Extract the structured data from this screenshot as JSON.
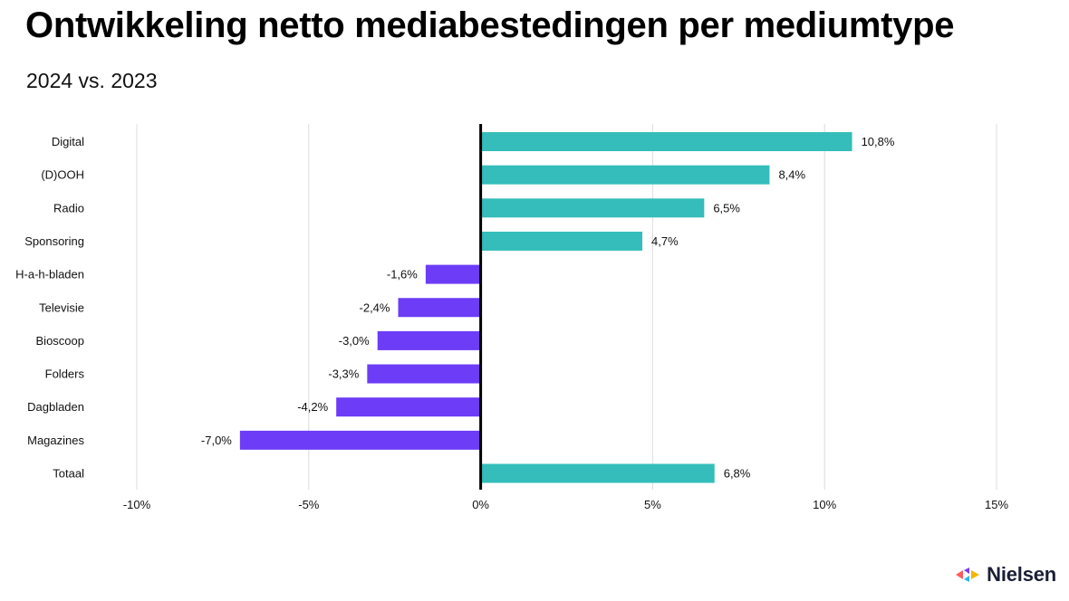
{
  "header": {
    "title": "Ontwikkeling netto mediabestedingen per mediumtype",
    "subtitle": "2024 vs. 2023"
  },
  "brand": {
    "name": "Nielsen"
  },
  "chart_data": {
    "type": "bar",
    "orientation": "horizontal",
    "categories": [
      "Digital",
      "(D)OOH",
      "Radio",
      "Sponsoring",
      "H-a-h-bladen",
      "Televisie",
      "Bioscoop",
      "Folders",
      "Dagbladen",
      "Magazines",
      "Totaal"
    ],
    "values": [
      10.8,
      8.4,
      6.5,
      4.7,
      -1.6,
      -2.4,
      -3.0,
      -3.3,
      -4.2,
      -7.0,
      6.8
    ],
    "value_labels": [
      "10,8%",
      "8,4%",
      "6,5%",
      "4,7%",
      "-1,6%",
      "-2,4%",
      "-3,0%",
      "-3,3%",
      "-4,2%",
      "-7,0%",
      "6,8%"
    ],
    "xlim": [
      -10,
      15
    ],
    "xticks": [
      -10,
      -5,
      0,
      5,
      10,
      15
    ],
    "xtick_labels": [
      "-10%",
      "-5%",
      "0%",
      "5%",
      "10%",
      "15%"
    ],
    "grid": "vertical",
    "colors": {
      "positive": "#34bdba",
      "negative": "#6c3cf6",
      "zero_line": "#000000",
      "grid": "#dcdcdc"
    }
  }
}
